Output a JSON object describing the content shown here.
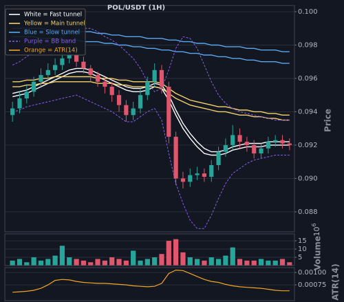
{
  "chart_data": [
    {
      "type": "candlestick",
      "title": "POL/USDT (1H)",
      "ylabel": "Price",
      "grid": true,
      "legend": "upper left",
      "up_color": "#26a69a",
      "down_color": "#e0566c",
      "ylim": [
        0.0868,
        0.10037
      ],
      "yticks": [
        0.088,
        {
          "value": 0.09,
          "label": "0.090"
        },
        0.092,
        0.094,
        0.096,
        0.098,
        {
          "value": 0.1,
          "label": "0.100"
        }
      ],
      "open": [
        0.0938,
        0.0942,
        0.0948,
        0.0952,
        0.0958,
        0.0962,
        0.0965,
        0.0968,
        0.0972,
        0.0974,
        0.097,
        0.0966,
        0.0962,
        0.0958,
        0.0955,
        0.095,
        0.0944,
        0.0938,
        0.0942,
        0.095,
        0.0958,
        0.0965,
        0.0955,
        0.0925,
        0.09,
        0.0898,
        0.0902,
        0.0903,
        0.0901,
        0.0908,
        0.0916,
        0.092,
        0.0926,
        0.0922,
        0.092,
        0.0915,
        0.0918,
        0.0922,
        0.0923,
        0.0921
      ],
      "high": [
        0.0946,
        0.0952,
        0.0956,
        0.0961,
        0.0966,
        0.0969,
        0.0972,
        0.0977,
        0.098,
        0.0977,
        0.0973,
        0.0968,
        0.0964,
        0.096,
        0.0958,
        0.0953,
        0.0947,
        0.0946,
        0.0954,
        0.0961,
        0.0969,
        0.0968,
        0.0958,
        0.0928,
        0.0904,
        0.0906,
        0.0907,
        0.0906,
        0.0911,
        0.0919,
        0.0924,
        0.0932,
        0.093,
        0.0925,
        0.0923,
        0.0921,
        0.0925,
        0.0926,
        0.0926,
        0.0924
      ],
      "low": [
        0.0934,
        0.0939,
        0.0945,
        0.0949,
        0.0955,
        0.0959,
        0.0962,
        0.0965,
        0.0969,
        0.0967,
        0.0963,
        0.0958,
        0.0955,
        0.0951,
        0.0946,
        0.094,
        0.0934,
        0.0935,
        0.0939,
        0.0947,
        0.0955,
        0.0951,
        0.0921,
        0.0896,
        0.0894,
        0.0895,
        0.0899,
        0.0898,
        0.0898,
        0.0905,
        0.0913,
        0.0917,
        0.0918,
        0.0916,
        0.0912,
        0.0912,
        0.0915,
        0.0919,
        0.0918,
        0.0917
      ],
      "close": [
        0.0942,
        0.0948,
        0.0952,
        0.0958,
        0.0962,
        0.0965,
        0.0968,
        0.0972,
        0.0974,
        0.097,
        0.0966,
        0.0962,
        0.0958,
        0.0955,
        0.095,
        0.0944,
        0.0938,
        0.0942,
        0.095,
        0.0958,
        0.0965,
        0.0955,
        0.0925,
        0.09,
        0.0898,
        0.0902,
        0.0903,
        0.0901,
        0.0908,
        0.0916,
        0.092,
        0.0926,
        0.0922,
        0.092,
        0.0915,
        0.0918,
        0.0922,
        0.0923,
        0.0921,
        0.092
      ],
      "overlays": [
        {
          "name": "White = Fast tunnel",
          "color": "#ffffff",
          "dashed": false,
          "lines": [
            [
              0.0951,
              0.0952,
              0.0953,
              0.0955,
              0.0957,
              0.0959,
              0.0961,
              0.0963,
              0.0965,
              0.0966,
              0.0966,
              0.0965,
              0.0963,
              0.0961,
              0.0959,
              0.0957,
              0.0955,
              0.0954,
              0.0954,
              0.0955,
              0.0957,
              0.0956,
              0.095,
              0.0941,
              0.0933,
              0.0927,
              0.0922,
              0.0918,
              0.0916,
              0.0916,
              0.0917,
              0.0919,
              0.092,
              0.0921,
              0.0921,
              0.0921,
              0.0922,
              0.0922,
              0.0922,
              0.0922
            ],
            [
              0.0949,
              0.095,
              0.0951,
              0.0953,
              0.0955,
              0.0957,
              0.0959,
              0.0961,
              0.0963,
              0.0964,
              0.0964,
              0.0963,
              0.0961,
              0.0959,
              0.0957,
              0.0955,
              0.0953,
              0.0952,
              0.0952,
              0.0953,
              0.0955,
              0.0954,
              0.0947,
              0.0938,
              0.093,
              0.0924,
              0.0919,
              0.0915,
              0.0914,
              0.0914,
              0.0915,
              0.0917,
              0.0918,
              0.0919,
              0.0919,
              0.0919,
              0.092,
              0.092,
              0.092,
              0.092
            ]
          ]
        },
        {
          "name": "Yellow = Main tunnel",
          "color": "#f5d36b",
          "dashed": false,
          "lines": [
            [
              0.0958,
              0.0958,
              0.0959,
              0.0959,
              0.096,
              0.096,
              0.0961,
              0.0961,
              0.0961,
              0.0961,
              0.0961,
              0.0961,
              0.096,
              0.096,
              0.096,
              0.0959,
              0.0959,
              0.0958,
              0.0958,
              0.0958,
              0.0958,
              0.0957,
              0.0954,
              0.0951,
              0.0949,
              0.0947,
              0.0946,
              0.0945,
              0.0944,
              0.0943,
              0.0943,
              0.0942,
              0.0941,
              0.0941,
              0.094,
              0.094,
              0.0939,
              0.0939,
              0.0938,
              0.0938
            ],
            [
              0.0955,
              0.0955,
              0.0956,
              0.0956,
              0.0957,
              0.0957,
              0.0958,
              0.0958,
              0.0958,
              0.0958,
              0.0958,
              0.0958,
              0.0957,
              0.0957,
              0.0957,
              0.0956,
              0.0956,
              0.0955,
              0.0955,
              0.0955,
              0.0955,
              0.0954,
              0.0951,
              0.0948,
              0.0946,
              0.0944,
              0.0943,
              0.0942,
              0.0941,
              0.094,
              0.094,
              0.0939,
              0.0938,
              0.0938,
              0.0937,
              0.0937,
              0.0936,
              0.0936,
              0.0935,
              0.0935
            ]
          ]
        },
        {
          "name": "Blue = Slow tunnel",
          "color": "#5aa9f0",
          "dashed": false,
          "lines": [
            [
              0.099,
              0.099,
              0.099,
              0.099,
              0.099,
              0.0989,
              0.0989,
              0.0989,
              0.0989,
              0.0988,
              0.0988,
              0.0988,
              0.0987,
              0.0987,
              0.0986,
              0.0986,
              0.0985,
              0.0985,
              0.0985,
              0.0984,
              0.0984,
              0.0984,
              0.0983,
              0.0983,
              0.0982,
              0.0982,
              0.0981,
              0.0981,
              0.098,
              0.098,
              0.0979,
              0.0979,
              0.0979,
              0.0978,
              0.0978,
              0.0977,
              0.0977,
              0.0977,
              0.0976,
              0.0976
            ],
            [
              0.0985,
              0.0985,
              0.0985,
              0.0985,
              0.0984,
              0.0984,
              0.0984,
              0.0983,
              0.0983,
              0.0983,
              0.0982,
              0.0982,
              0.0982,
              0.0981,
              0.0981,
              0.098,
              0.098,
              0.0979,
              0.0979,
              0.0978,
              0.0978,
              0.0977,
              0.0977,
              0.0976,
              0.0976,
              0.0975,
              0.0975,
              0.0974,
              0.0974,
              0.0973,
              0.0973,
              0.0972,
              0.0972,
              0.0971,
              0.0971,
              0.097,
              0.097,
              0.097,
              0.0969,
              0.0969
            ]
          ]
        },
        {
          "name": "Purple = BB band",
          "color": "#8c5cf0",
          "dashed": true,
          "lines": [
            [
              0.0968,
              0.097,
              0.0973,
              0.0976,
              0.0978,
              0.098,
              0.0982,
              0.0985,
              0.0988,
              0.099,
              0.099,
              0.099,
              0.0988,
              0.0985,
              0.0983,
              0.098,
              0.0976,
              0.0972,
              0.0966,
              0.0958,
              0.0952,
              0.0954,
              0.0965,
              0.0978,
              0.0985,
              0.0984,
              0.0978,
              0.0968,
              0.0958,
              0.095,
              0.0945,
              0.0942,
              0.094,
              0.0939,
              0.0938,
              0.0937,
              0.0936,
              0.0935,
              0.0935,
              0.0935
            ],
            [
              0.094,
              0.0941,
              0.0943,
              0.0944,
              0.0945,
              0.0946,
              0.0947,
              0.0948,
              0.0949,
              0.095,
              0.0948,
              0.0946,
              0.0944,
              0.0942,
              0.094,
              0.0937,
              0.0934,
              0.0934,
              0.0937,
              0.094,
              0.0942,
              0.0935,
              0.0915,
              0.0897,
              0.0885,
              0.0875,
              0.087,
              0.087,
              0.0878,
              0.0888,
              0.0897,
              0.0903,
              0.0906,
              0.0909,
              0.0911,
              0.0912,
              0.0913,
              0.0914,
              0.0914,
              0.0914
            ]
          ]
        }
      ]
    },
    {
      "type": "bar",
      "ylabel": "Volume",
      "multiplier": {
        "base": "10",
        "exponent": "6"
      },
      "ylim": [
        0,
        19.2
      ],
      "yticks": [
        5,
        10,
        15
      ],
      "grid": true,
      "values": [
        3,
        4,
        2,
        5,
        3,
        4,
        6,
        12,
        5,
        4,
        3,
        2,
        4,
        3,
        5,
        4,
        3,
        9,
        3,
        4,
        5,
        7,
        15,
        16,
        8,
        5,
        4,
        3,
        5,
        4,
        6,
        11,
        4,
        3,
        3,
        4,
        3,
        3,
        4,
        2
      ]
    },
    {
      "type": "line",
      "name": "Orange = ATR(14)",
      "ylabel": "ATR(14)",
      "color": "#f5a623",
      "grid": true,
      "ylim": [
        0.00043,
        0.0011
      ],
      "yticks": [
        {
          "value": 0.00075,
          "label": "0.00075"
        },
        {
          "value": 0.001,
          "label": "0.00100"
        }
      ],
      "values": [
        0.0006,
        0.00061,
        0.00062,
        0.00064,
        0.00068,
        0.00075,
        0.00084,
        0.00086,
        0.00085,
        0.00082,
        0.0008,
        0.00079,
        0.00078,
        0.00078,
        0.00077,
        0.00076,
        0.00075,
        0.00073,
        0.00072,
        0.00071,
        0.00072,
        0.00078,
        0.00098,
        0.00105,
        0.00104,
        0.00098,
        0.00092,
        0.00086,
        0.00082,
        0.0008,
        0.00076,
        0.00073,
        0.00071,
        0.0007,
        0.00069,
        0.00068,
        0.00066,
        0.00064,
        0.00063,
        0.00063
      ]
    }
  ]
}
